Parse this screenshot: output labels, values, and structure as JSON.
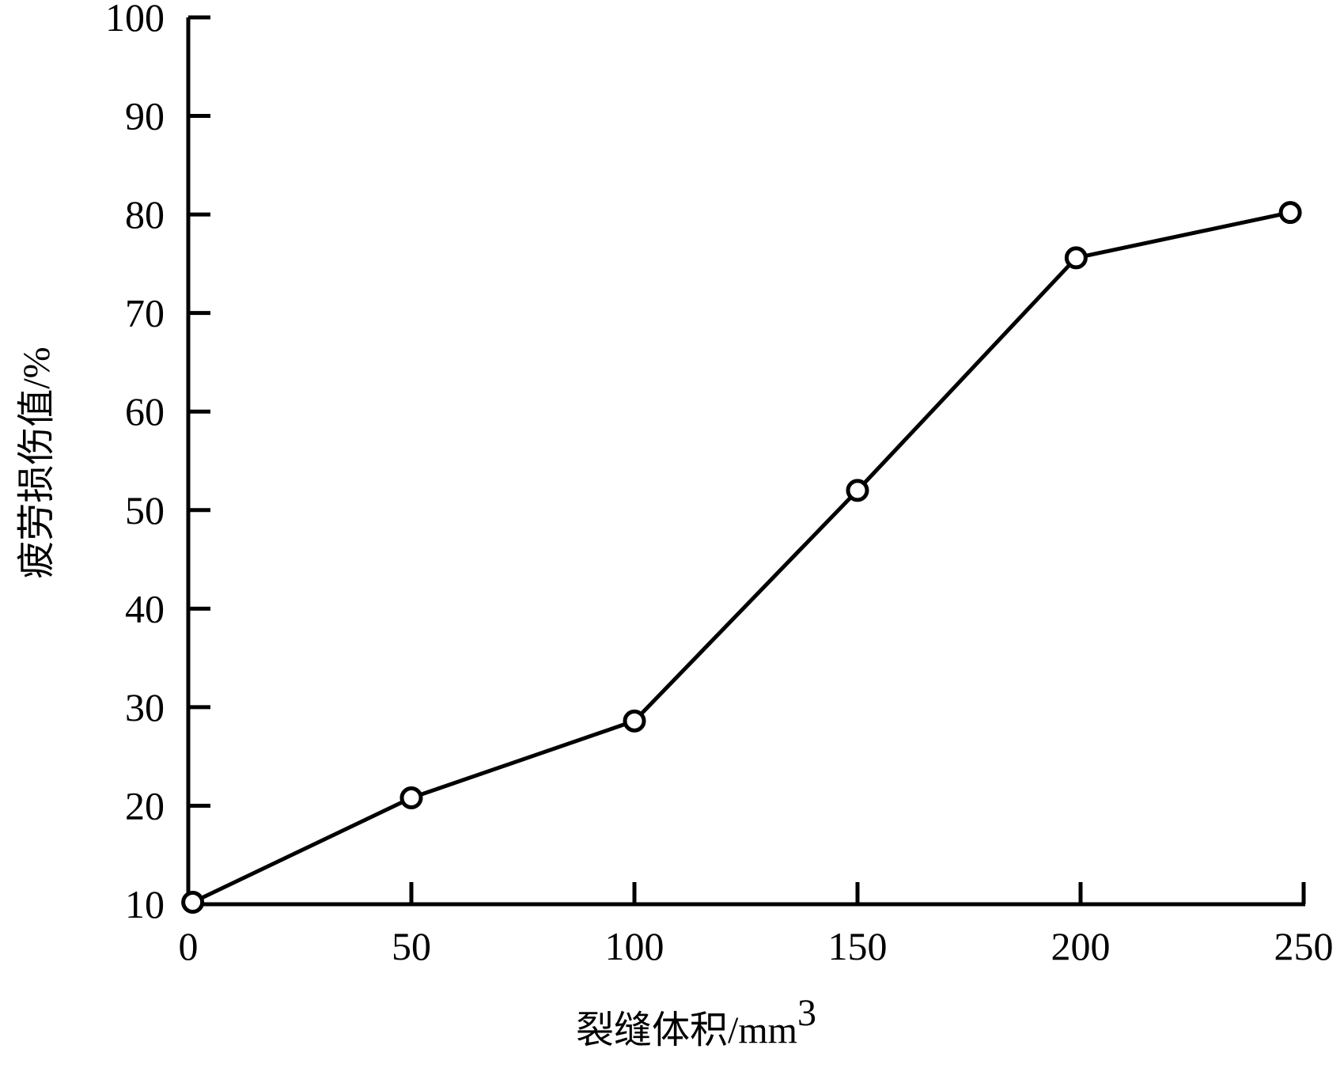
{
  "chart_data": {
    "type": "line",
    "title": "",
    "xlabel": "裂缝体积",
    "xlabel_unit": "/mm",
    "xlabel_unit_sup": "3",
    "ylabel": "疲劳损伤值",
    "ylabel_unit": "/%",
    "xlim": [
      0,
      250
    ],
    "ylim": [
      10,
      100
    ],
    "x_ticks": [
      0,
      50,
      100,
      150,
      200,
      250
    ],
    "y_ticks": [
      10,
      20,
      30,
      40,
      50,
      60,
      70,
      80,
      90,
      100
    ],
    "grid": false,
    "legend": "none",
    "marker": "open-circle",
    "line_color": "#000000",
    "series": [
      {
        "x": [
          1,
          50,
          100,
          150,
          199,
          247
        ],
        "y": [
          10.2,
          20.8,
          28.6,
          52,
          75.6,
          80.2
        ]
      }
    ]
  }
}
